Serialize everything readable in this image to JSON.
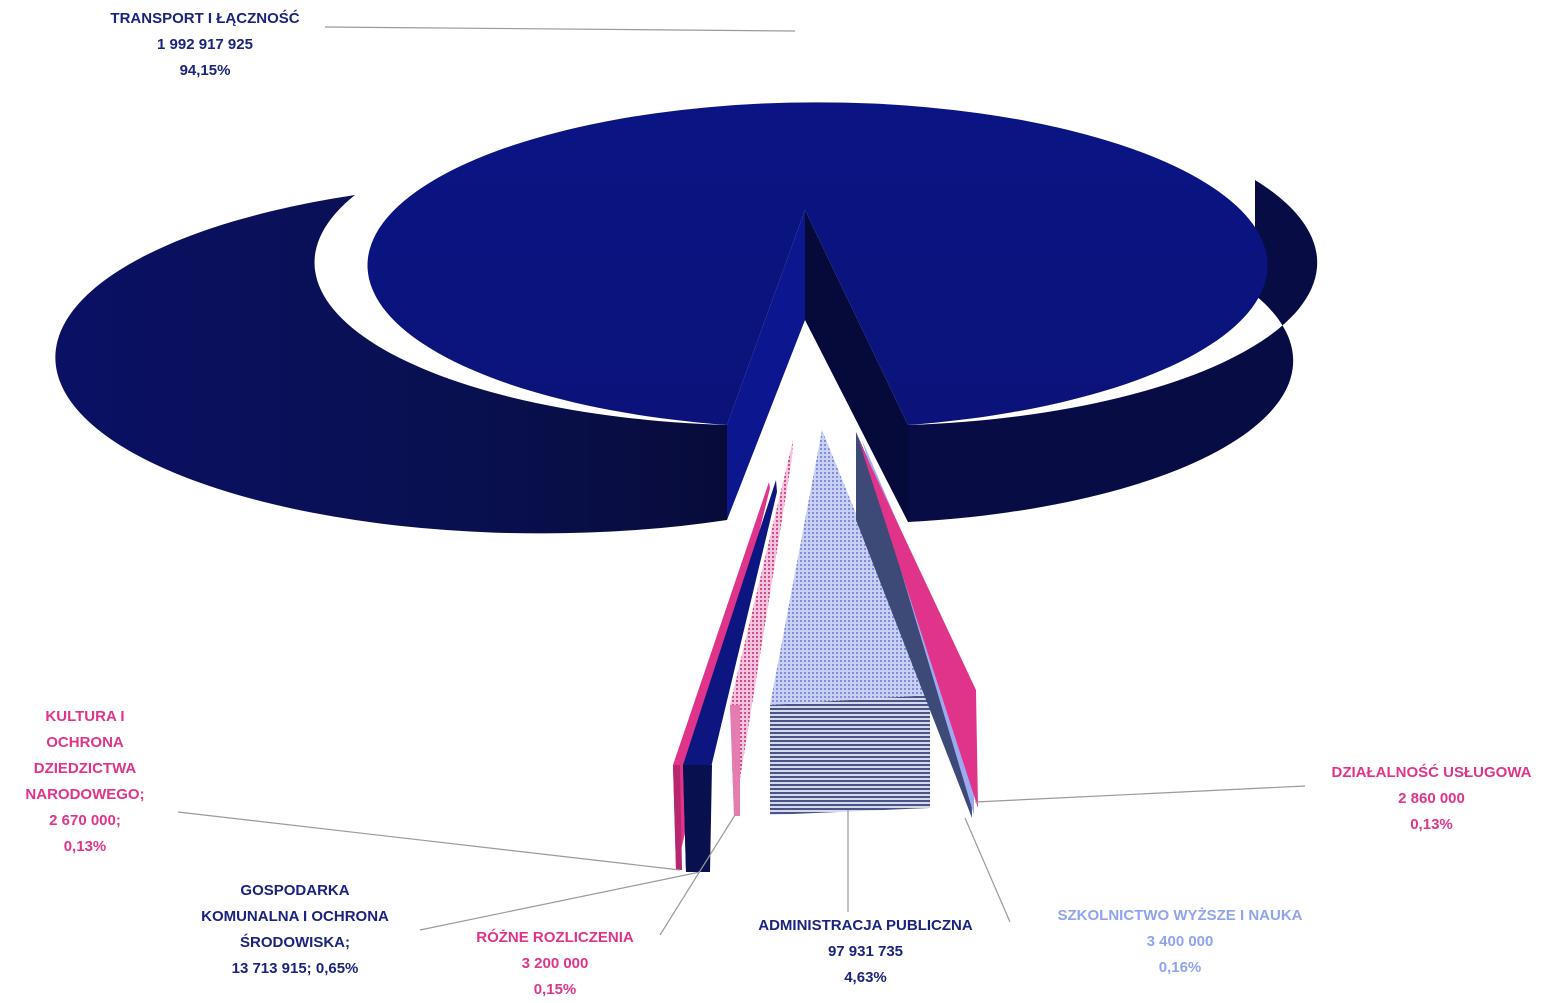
{
  "chart_data": {
    "type": "pie",
    "style": "3d-exploded",
    "unit": "",
    "slices": [
      {
        "label": "TRANSPORT I ŁĄCZNOŚĆ",
        "value": 1992917925,
        "value_text": "1 992 917 925",
        "percent": "94,15%",
        "color": "#0b137d",
        "pattern": "solid"
      },
      {
        "label": "DZIAŁALNOŚĆ USŁUGOWA",
        "value": 2860000,
        "value_text": "2 860 000",
        "percent": "0,13%",
        "color": "#e0348a",
        "pattern": "solid"
      },
      {
        "label": "SZKOLNICTWO WYŻSZE I NAUKA",
        "value": 3400000,
        "value_text": "3 400 000",
        "percent": "0,16%",
        "color": "#9daaf2",
        "pattern": "solid"
      },
      {
        "label": "ADMINISTRACJA PUBLICZNA",
        "value": 97931735,
        "value_text": "97 931 735",
        "percent": "4,63%",
        "color": "#b3bde9",
        "pattern": "dotted"
      },
      {
        "label": "RÓŻNE ROZLICZENIA",
        "value": 3200000,
        "value_text": "3 200 000",
        "percent": "0,15%",
        "color": "#e57cb0",
        "pattern": "dotted"
      },
      {
        "label": "GOSPODARKA KOMUNALNA I OCHRONA ŚRODOWISKA;",
        "value": 13713915,
        "value_text": "13 713 915;",
        "percent": "0,65%",
        "color": "#0b137d",
        "pattern": "solid"
      },
      {
        "label": "KULTURA I OCHRONA DZIEDZICTWA NARODOWEGO;",
        "value": 2670000,
        "value_text": "2 670 000;",
        "percent": "0,13%",
        "color": "#e0348a",
        "pattern": "solid"
      }
    ]
  },
  "labels": {
    "transport": {
      "lines": [
        "TRANSPORT I ŁĄCZNOŚĆ",
        "1 992 917 925",
        "94,15%"
      ],
      "color": "#1a237e"
    },
    "dzialalnosc": {
      "lines": [
        "DZIAŁALNOŚĆ USŁUGOWA",
        "2 860 000",
        "0,13%"
      ],
      "color": "#e0348a"
    },
    "szkolnictwo": {
      "lines": [
        "SZKOLNICTWO WYŻSZE I NAUKA",
        "3 400 000",
        "0,16%"
      ],
      "color": "#8fa3f0"
    },
    "administracja": {
      "lines": [
        "ADMINISTRACJA PUBLICZNA",
        "97 931 735",
        "4,63%"
      ],
      "color": "#1a237e"
    },
    "rozne": {
      "lines": [
        "RÓŻNE ROZLICZENIA",
        "3 200 000",
        "0,15%"
      ],
      "color": "#e0348a"
    },
    "gospodarka": {
      "lines": [
        "GOSPODARKA",
        "KOMUNALNA I OCHRONA",
        "ŚRODOWISKA;",
        "13 713 915;   0,65%"
      ],
      "color": "#1a237e"
    },
    "kultura": {
      "lines": [
        "KULTURA I",
        "OCHRONA",
        "DZIEDZICTWA",
        "NARODOWEGO;",
        "2 670 000;",
        "0,13%"
      ],
      "color": "#e0348a"
    }
  }
}
